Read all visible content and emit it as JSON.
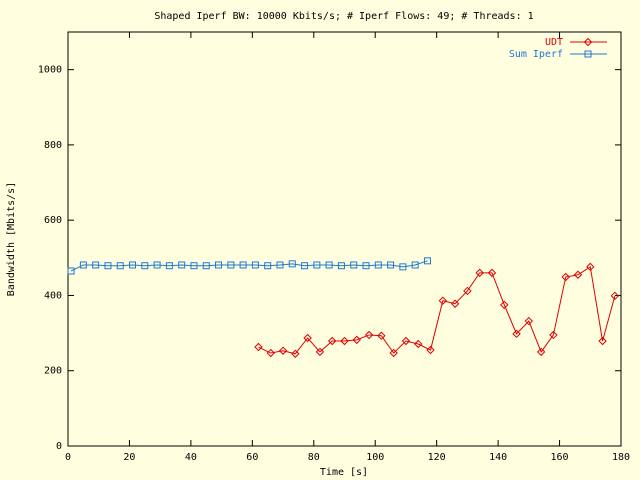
{
  "chart_data": {
    "type": "line",
    "title": "Shaped Iperf BW: 10000 Kbits/s; # Iperf Flows: 49; # Threads: 1",
    "x_label": "Time [s]",
    "y_label": "Bandwidth [Mbits/s]",
    "xlim": [
      0,
      180
    ],
    "ylim": [
      0,
      1100
    ],
    "xticks": [
      0,
      20,
      40,
      60,
      80,
      100,
      120,
      140,
      160,
      180
    ],
    "yticks": [
      0,
      200,
      400,
      600,
      800,
      1000
    ],
    "legend": "top-right",
    "series": [
      {
        "name": "UDT",
        "color": "#e00000",
        "marker": "diamond",
        "x": [
          62,
          66,
          70,
          74,
          78,
          82,
          86,
          90,
          94,
          98,
          102,
          106,
          110,
          114,
          118,
          122,
          126,
          130,
          134,
          138,
          142,
          146,
          150,
          154,
          158,
          162,
          166,
          170,
          174,
          178
        ],
        "values": [
          263,
          247,
          253,
          245,
          287,
          250,
          279,
          279,
          282,
          295,
          293,
          247,
          279,
          271,
          255,
          386,
          378,
          412,
          460,
          460,
          375,
          298,
          332,
          250,
          295,
          449,
          455,
          476,
          279,
          399
        ]
      },
      {
        "name": "Sum Iperf",
        "color": "#1f78d0",
        "marker": "square",
        "x": [
          1,
          5,
          9,
          13,
          17,
          21,
          25,
          29,
          33,
          37,
          41,
          45,
          49,
          53,
          57,
          61,
          65,
          69,
          73,
          77,
          81,
          85,
          89,
          93,
          97,
          101,
          105,
          109,
          113,
          117
        ],
        "values": [
          465,
          481,
          481,
          479,
          479,
          481,
          479,
          481,
          479,
          481,
          479,
          479,
          481,
          481,
          481,
          481,
          479,
          481,
          484,
          479,
          481,
          481,
          479,
          481,
          479,
          481,
          481,
          476,
          481,
          492
        ]
      }
    ]
  }
}
